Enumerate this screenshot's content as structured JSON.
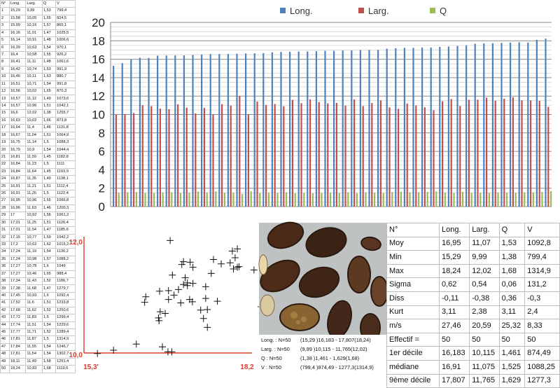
{
  "raw_table": {
    "headers": [
      "N°",
      "Long.",
      "Larg.",
      "Q",
      "V"
    ],
    "rows": [
      [
        "1",
        "15,29",
        "9,99",
        "1,53",
        "799,4"
      ],
      [
        "2",
        "15,58",
        "10,05",
        "1,55",
        "824,5"
      ],
      [
        "3",
        "15,99",
        "10,16",
        "1,57",
        "865,1"
      ],
      [
        "4",
        "16,16",
        "11,01",
        "1,47",
        "1025,5"
      ],
      [
        "5",
        "16,14",
        "10,91",
        "1,48",
        "1006,6"
      ],
      [
        "6",
        "16,39",
        "10,63",
        "1,54",
        "970,1"
      ],
      [
        "7",
        "16,4",
        "10,58",
        "1,55",
        "926,2"
      ],
      [
        "8",
        "16,41",
        "11,11",
        "1,48",
        "1061,6"
      ],
      [
        "9",
        "16,42",
        "10,74",
        "1,53",
        "991,9"
      ],
      [
        "10",
        "16,46",
        "10,11",
        "1,63",
        "880,7"
      ],
      [
        "11",
        "16,51",
        "10,71",
        "1,54",
        "991,8"
      ],
      [
        "12",
        "16,56",
        "10,02",
        "1,65",
        "870,3"
      ],
      [
        "13",
        "16,57",
        "11,12",
        "1,49",
        "1073,6"
      ],
      [
        "14",
        "16,57",
        "10,96",
        "1,51",
        "1042,1"
      ],
      [
        "15",
        "16,6",
        "12,02",
        "1,38",
        "1255,7"
      ],
      [
        "16",
        "16,63",
        "10,02",
        "1,66",
        "873,8"
      ],
      [
        "17",
        "16,64",
        "11,4",
        "1,46",
        "1131,8"
      ],
      [
        "18",
        "16,67",
        "11,04",
        "1,51",
        "1064,9"
      ],
      [
        "19",
        "16,75",
        "11,14",
        "1,5",
        "1088,3"
      ],
      [
        "20",
        "16,79",
        "10,9",
        "1,54",
        "1044,4"
      ],
      [
        "21",
        "16,81",
        "11,59",
        "1,45",
        "1182,8"
      ],
      [
        "22",
        "16,84",
        "11,23",
        "1,5",
        "1111"
      ],
      [
        "23",
        "16,84",
        "11,64",
        "1,45",
        "1193,9"
      ],
      [
        "24",
        "16,87",
        "11,35",
        "1,49",
        "1138,1"
      ],
      [
        "25",
        "16,91",
        "11,21",
        "1,51",
        "1112,4"
      ],
      [
        "26",
        "16,91",
        "11,26",
        "1,5",
        "1122,4"
      ],
      [
        "27",
        "16,95",
        "10,96",
        "1,55",
        "1066,8"
      ],
      [
        "28",
        "16,96",
        "11,63",
        "1,46",
        "1200,3"
      ],
      [
        "29",
        "17",
        "10,92",
        "1,56",
        "1061,2"
      ],
      [
        "30",
        "17,01",
        "11,25",
        "1,51",
        "1126,4"
      ],
      [
        "31",
        "17,01",
        "11,54",
        "1,47",
        "1185,6"
      ],
      [
        "32",
        "17,15",
        "10,77",
        "1,59",
        "1042,2"
      ],
      [
        "33",
        "17,2",
        "10,62",
        "1,62",
        "1015,2"
      ],
      [
        "34",
        "17,24",
        "11,19",
        "1,54",
        "1130,2"
      ],
      [
        "35",
        "17,24",
        "10,98",
        "1,57",
        "1088,2"
      ],
      [
        "36",
        "17,27",
        "10,78",
        "1,6",
        "1049"
      ],
      [
        "37",
        "17,27",
        "10,46",
        "1,65",
        "988,4"
      ],
      [
        "38",
        "17,34",
        "11,43",
        "1,52",
        "1186,7"
      ],
      [
        "39",
        "17,38",
        "11,68",
        "1,47",
        "1279,7"
      ],
      [
        "40",
        "17,45",
        "10,93",
        "1,6",
        "1092,4"
      ],
      [
        "41",
        "17,52",
        "11,6",
        "1,51",
        "1233,8"
      ],
      [
        "42",
        "17,68",
        "11,62",
        "1,52",
        "1250,6"
      ],
      [
        "43",
        "17,72",
        "11,83",
        "1,5",
        "1299,4"
      ],
      [
        "44",
        "17,74",
        "11,51",
        "1,54",
        "1229,6"
      ],
      [
        "45",
        "17,77",
        "11,71",
        "1,52",
        "1289,4"
      ],
      [
        "46",
        "17,81",
        "11,87",
        "1,5",
        "1314,9"
      ],
      [
        "47",
        "17,84",
        "11,55",
        "1,54",
        "1246,7"
      ],
      [
        "48",
        "17,81",
        "11,54",
        "1,54",
        "1302,7"
      ],
      [
        "49",
        "18,11",
        "11,49",
        "1,58",
        "1251,4"
      ],
      [
        "50",
        "18,24",
        "10,83",
        "1,68",
        "1119,6"
      ]
    ]
  },
  "chart_data": [
    {
      "type": "bar",
      "legend": [
        "Long.",
        "Larg.",
        "Q"
      ],
      "legend_position": "top",
      "colors": [
        "#4f81bd",
        "#c0504d",
        "#9bbb59"
      ],
      "ylim": [
        0,
        20
      ],
      "yticks": [
        "0",
        "2",
        "4",
        "6",
        "8",
        "10",
        "12",
        "14",
        "16",
        "18",
        "20"
      ],
      "grid": true,
      "series": [
        {
          "name": "Long.",
          "values": [
            15.29,
            15.58,
            15.99,
            16.16,
            16.14,
            16.39,
            16.4,
            16.41,
            16.42,
            16.46,
            16.51,
            16.56,
            16.57,
            16.57,
            16.6,
            16.63,
            16.64,
            16.67,
            16.75,
            16.79,
            16.81,
            16.84,
            16.84,
            16.87,
            16.91,
            16.91,
            16.95,
            16.96,
            17,
            17.01,
            17.01,
            17.15,
            17.2,
            17.24,
            17.24,
            17.27,
            17.27,
            17.34,
            17.38,
            17.45,
            17.52,
            17.68,
            17.72,
            17.74,
            17.77,
            17.81,
            17.84,
            17.81,
            18.11,
            18.24
          ]
        },
        {
          "name": "Larg.",
          "values": [
            9.99,
            10.05,
            10.16,
            11.01,
            10.91,
            10.63,
            10.58,
            11.11,
            10.74,
            10.11,
            10.71,
            10.02,
            11.12,
            10.96,
            12.02,
            10.02,
            11.4,
            11.04,
            11.14,
            10.9,
            11.59,
            11.23,
            11.64,
            11.35,
            11.21,
            11.26,
            10.96,
            11.63,
            10.92,
            11.25,
            11.54,
            10.77,
            10.62,
            11.19,
            10.98,
            10.78,
            10.46,
            11.43,
            11.68,
            10.93,
            11.6,
            11.62,
            11.83,
            11.51,
            11.71,
            11.87,
            11.55,
            11.54,
            11.49,
            10.83
          ]
        },
        {
          "name": "Q",
          "values": [
            1.53,
            1.55,
            1.57,
            1.47,
            1.48,
            1.54,
            1.55,
            1.48,
            1.53,
            1.63,
            1.54,
            1.65,
            1.49,
            1.51,
            1.38,
            1.66,
            1.46,
            1.51,
            1.5,
            1.54,
            1.45,
            1.5,
            1.45,
            1.49,
            1.51,
            1.5,
            1.55,
            1.46,
            1.56,
            1.51,
            1.47,
            1.59,
            1.62,
            1.54,
            1.57,
            1.6,
            1.65,
            1.52,
            1.47,
            1.6,
            1.51,
            1.52,
            1.5,
            1.54,
            1.52,
            1.5,
            1.54,
            1.54,
            1.58,
            1.68
          ]
        }
      ]
    },
    {
      "type": "scatter",
      "xlim": [
        15.3,
        18.2
      ],
      "ylim": [
        10.0,
        12.0
      ],
      "x_tick_labels": [
        "15,3'",
        "18,2"
      ],
      "y_tick_labels": [
        "12,0",
        "10,0"
      ],
      "axis_color": "#e03a2a",
      "x": [
        15.29,
        15.58,
        15.99,
        16.16,
        16.14,
        16.39,
        16.4,
        16.41,
        16.42,
        16.46,
        16.51,
        16.56,
        16.57,
        16.57,
        16.6,
        16.63,
        16.64,
        16.67,
        16.75,
        16.79,
        16.81,
        16.84,
        16.84,
        16.87,
        16.91,
        16.91,
        16.95,
        16.96,
        17,
        17.01,
        17.01,
        17.15,
        17.2,
        17.24,
        17.24,
        17.27,
        17.27,
        17.34,
        17.38,
        17.45,
        17.52,
        17.68,
        17.72,
        17.74,
        17.77,
        17.81,
        17.84,
        17.81,
        18.11,
        18.24
      ],
      "y": [
        9.99,
        10.05,
        10.16,
        11.01,
        10.91,
        10.63,
        10.58,
        11.11,
        10.74,
        10.11,
        10.71,
        10.02,
        11.12,
        10.96,
        12.02,
        10.02,
        11.4,
        11.04,
        11.14,
        10.9,
        11.59,
        11.23,
        11.64,
        11.35,
        11.21,
        11.26,
        10.96,
        11.63,
        10.92,
        11.25,
        11.54,
        10.77,
        10.62,
        11.19,
        10.98,
        10.78,
        10.46,
        11.43,
        11.68,
        10.93,
        11.6,
        11.62,
        11.83,
        11.51,
        11.71,
        11.87,
        11.55,
        11.54,
        11.49,
        10.83
      ]
    }
  ],
  "ranges": [
    {
      "label": "Long. : N=50",
      "value": "(15,29 )16,183 - 17,807(18,24)"
    },
    {
      "label": "Larg. : N=50",
      "value": "(9,99 )10,115 - 11,765(12,02)"
    },
    {
      "label": "Q : N=50",
      "value": "(1,38 )1,461 - 1,629(1,68)"
    },
    {
      "label": "V : N=50",
      "value": "(799,4 )874,49 - 1277,3(1314,9)"
    }
  ],
  "stats": {
    "headers": [
      "N°",
      "Long.",
      "Larg.",
      "Q",
      "V"
    ],
    "rows": [
      [
        "Moy",
        "16,95",
        "11,07",
        "1,53",
        "1092,8"
      ],
      [
        "Min",
        "15,29",
        "9,99",
        "1,38",
        "799,4"
      ],
      [
        "Max",
        "18,24",
        "12,02",
        "1,68",
        "1314,9"
      ],
      [
        "Sigma",
        "0,62",
        "0,54",
        "0,06",
        "131,2"
      ],
      [
        "Diss",
        "-0,11",
        "-0,38",
        "0,36",
        "-0,3"
      ],
      [
        "Kurt",
        "3,11",
        "2,38",
        "3,11",
        "2,4"
      ],
      [
        "m/s",
        "27,46",
        "20,59",
        "25,32",
        "8,33"
      ],
      [
        "Effectif =",
        "50",
        "50",
        "50",
        "50"
      ],
      [
        "1er décile",
        "16,183",
        "10,115",
        "1,461",
        "874,49"
      ],
      [
        "médiane",
        "16,91",
        "11,075",
        "1,525",
        "1088,25"
      ],
      [
        "9ème décile",
        "17,807",
        "11,765",
        "1,629",
        "1277,3"
      ]
    ]
  }
}
